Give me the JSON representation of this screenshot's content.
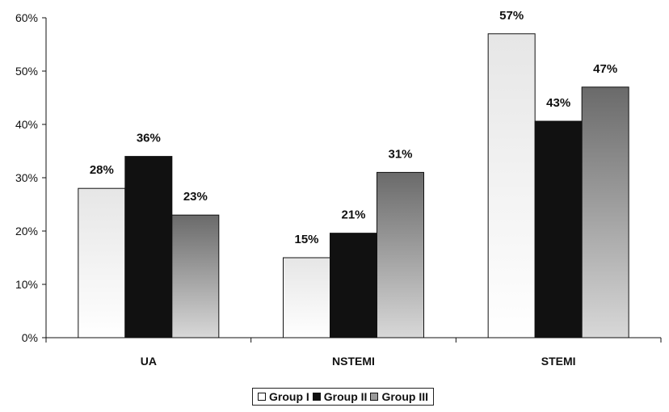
{
  "chart_data": {
    "type": "bar",
    "categories": [
      "UA",
      "NSTEMI",
      "STEMI"
    ],
    "series": [
      {
        "name": "Group I",
        "values": [
          28,
          15,
          57
        ],
        "labels": [
          "28%",
          "15%",
          "57%"
        ],
        "color": "#f2f2f2"
      },
      {
        "name": "Group II",
        "values": [
          34,
          19.6,
          40.6
        ],
        "labels": [
          "36%",
          "21%",
          "43%"
        ],
        "color": "#111111"
      },
      {
        "name": "Group III",
        "values": [
          23,
          31,
          47
        ],
        "labels": [
          "23%",
          "31%",
          "47%"
        ],
        "color": "#8a8a8a"
      }
    ],
    "ylim": [
      0,
      60
    ],
    "yticks": [
      "0%",
      "10%",
      "20%",
      "30%",
      "40%",
      "50%",
      "60%"
    ],
    "grid": false,
    "legend_position": "bottom"
  }
}
